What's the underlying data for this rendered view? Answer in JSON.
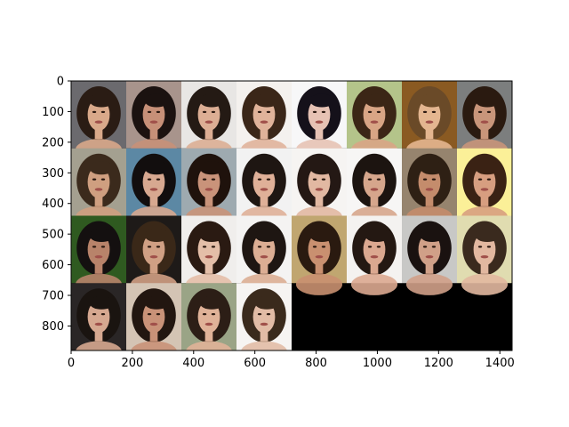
{
  "chart_data": {
    "type": "image_grid",
    "title": "",
    "xlabel": "",
    "ylabel": "",
    "grid": false,
    "xlim": [
      0,
      1440
    ],
    "ylim": [
      880,
      0
    ],
    "x_ticks": [
      "0",
      "200",
      "400",
      "600",
      "800",
      "1000",
      "1200",
      "1400"
    ],
    "y_ticks": [
      "0",
      "100",
      "200",
      "300",
      "400",
      "500",
      "600",
      "700",
      "800"
    ],
    "tiles": {
      "rows": 4,
      "cols": 8,
      "tile_width": 180,
      "tile_height": 220,
      "filled_tiles": 28,
      "empty_color": "#000000",
      "palette": [
        {
          "bg": "#6b6a6e",
          "hair": "#2a1c14",
          "skin": "#d9a98a"
        },
        {
          "bg": "#a8948c",
          "hair": "#1b1210",
          "skin": "#c79078"
        },
        {
          "bg": "#e8e6e4",
          "hair": "#241a14",
          "skin": "#dcae94"
        },
        {
          "bg": "#f4f1ee",
          "hair": "#3a2618",
          "skin": "#e0b39a"
        },
        {
          "bg": "#f7f7f8",
          "hair": "#15111a",
          "skin": "#e6c2b4"
        },
        {
          "bg": "#b4c48a",
          "hair": "#3b2616",
          "skin": "#d8a585"
        },
        {
          "bg": "#8a5a22",
          "hair": "#6a4a28",
          "skin": "#e4b690"
        },
        {
          "bg": "#7c7e7e",
          "hair": "#2a1a10",
          "skin": "#c8957a"
        },
        {
          "bg": "#a4a090",
          "hair": "#3b2a1c",
          "skin": "#cf9f80"
        },
        {
          "bg": "#5c88a4",
          "hair": "#120e0e",
          "skin": "#d7a890"
        },
        {
          "bg": "#9eaab0",
          "hair": "#1f120c",
          "skin": "#c9937a"
        },
        {
          "bg": "#f2f2f2",
          "hair": "#1e1612",
          "skin": "#dfb098"
        },
        {
          "bg": "#f6f4f2",
          "hair": "#241814",
          "skin": "#e2b8a2"
        },
        {
          "bg": "#f7f6f5",
          "hair": "#1c1410",
          "skin": "#d6a68c"
        },
        {
          "bg": "#96846e",
          "hair": "#2e2014",
          "skin": "#c48c6c"
        },
        {
          "bg": "#fbf098",
          "hair": "#3a2214",
          "skin": "#d79e80"
        },
        {
          "bg": "#2f5a20",
          "hair": "#141010",
          "skin": "#b8836a"
        },
        {
          "bg": "#1e1a18",
          "hair": "#3a2818",
          "skin": "#d0a084"
        },
        {
          "bg": "#f0eeec",
          "hair": "#2a1a12",
          "skin": "#e4bea8"
        },
        {
          "bg": "#f4f3f2",
          "hair": "#1e1612",
          "skin": "#dcae94"
        },
        {
          "bg": "#c0a670",
          "hair": "#2a1a10",
          "skin": "#c99070"
        },
        {
          "bg": "#f4f2f0",
          "hair": "#241812",
          "skin": "#dba890"
        },
        {
          "bg": "#c8c8c6",
          "hair": "#1a1210",
          "skin": "#d0a088"
        },
        {
          "bg": "#e0dcb0",
          "hair": "#3a2a1e",
          "skin": "#e2b8a0"
        },
        {
          "bg": "#2a2626",
          "hair": "#1a1410",
          "skin": "#d6a890"
        },
        {
          "bg": "#d4c4b4",
          "hair": "#221610",
          "skin": "#c99278"
        },
        {
          "bg": "#9aa486",
          "hair": "#2c1e16",
          "skin": "#e0b298"
        },
        {
          "bg": "#f6f4f2",
          "hair": "#3a2a1c",
          "skin": "#e2bca6"
        }
      ]
    }
  }
}
